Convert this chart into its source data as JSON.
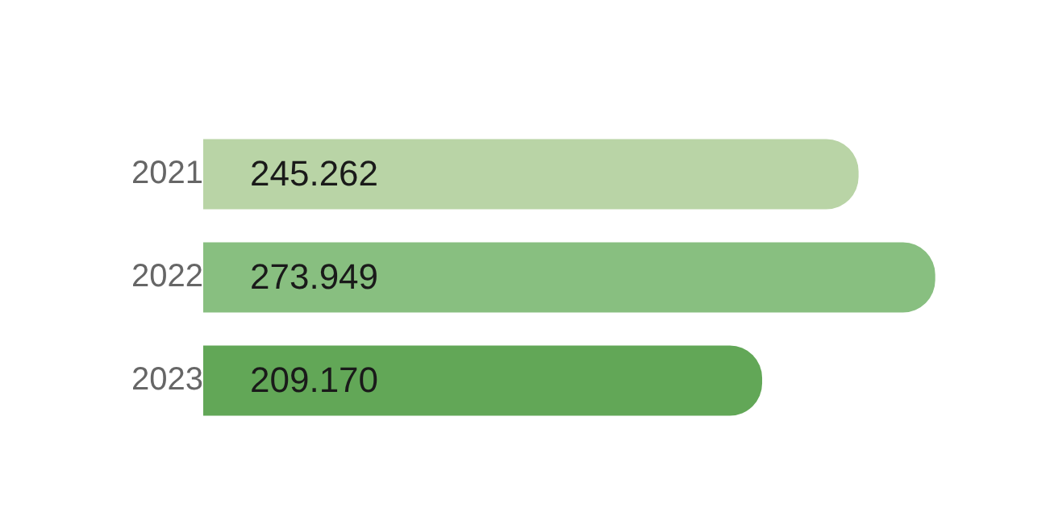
{
  "chart_data": {
    "type": "bar",
    "orientation": "horizontal",
    "categories": [
      "2021",
      "2022",
      "2023"
    ],
    "values": [
      245.262,
      273.949,
      209.17
    ],
    "colors": [
      "#b9d4a6",
      "#88bf80",
      "#62a757"
    ],
    "value_labels": [
      "245.262",
      "273.949",
      "209.170"
    ],
    "grid": false,
    "legend": false
  }
}
